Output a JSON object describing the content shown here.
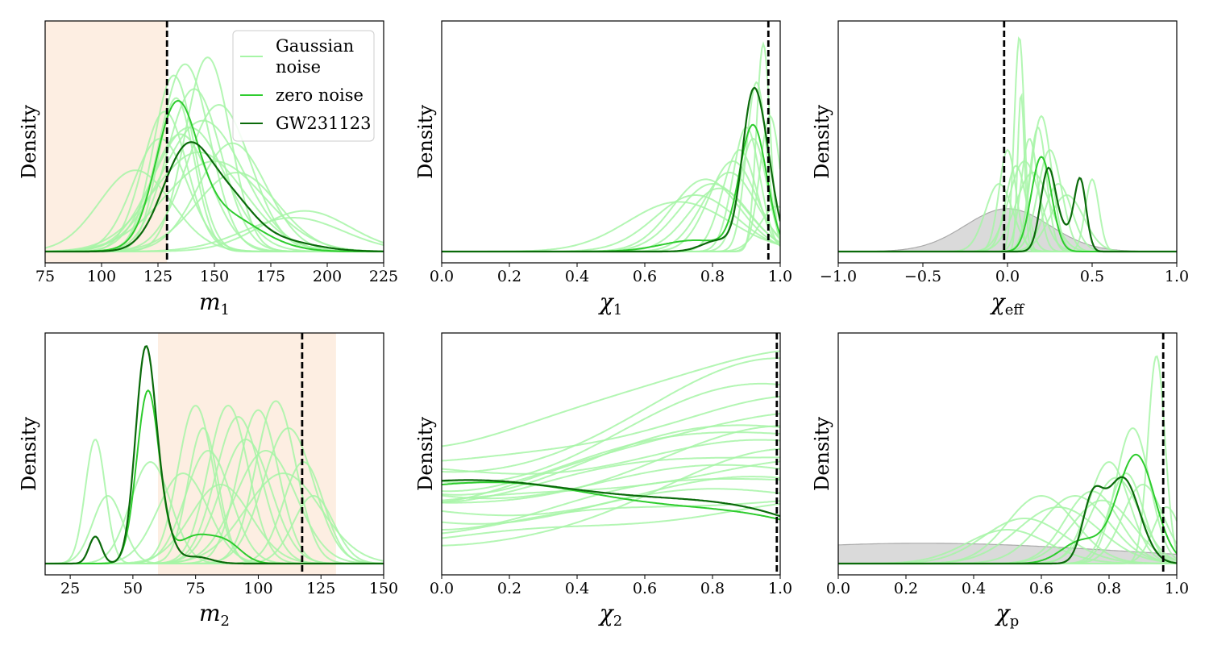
{
  "colors": {
    "gaussian_noise": "#a6f5a6",
    "zero_noise": "#2ecc2e",
    "gw231123": "#0a6a0a",
    "true_value": "#000000",
    "shade": "#fdeee2",
    "prior_fill": "#d3d3d3",
    "prior_edge": "#a9a9a9"
  },
  "legend": {
    "gaussian_line1": "Gaussian",
    "gaussian_line2": "noise",
    "zero_noise": "zero noise",
    "gw231123": "GW231123"
  },
  "chart_data": [
    {
      "type": "line",
      "panel": "m1",
      "xlabel_main": "m",
      "xlabel_sub": "1",
      "ylabel": "Density",
      "xlim": [
        75,
        225
      ],
      "ticks": [
        75,
        100,
        125,
        150,
        175,
        200,
        225
      ],
      "tick_labels": [
        "75",
        "100",
        "125",
        "150",
        "175",
        "200",
        "225"
      ],
      "true_value": 129,
      "shade_range": [
        75,
        129
      ],
      "legend_position": "top-right",
      "gaussian_peaks": [
        [
          147,
          0.86,
          10
        ],
        [
          137,
          0.83,
          11
        ],
        [
          132,
          0.78,
          9
        ],
        [
          141,
          0.72,
          12
        ],
        [
          152,
          0.65,
          14
        ],
        [
          128,
          0.62,
          10
        ],
        [
          145,
          0.58,
          18
        ],
        [
          139,
          0.55,
          16
        ],
        [
          135,
          0.52,
          13
        ],
        [
          158,
          0.48,
          15
        ],
        [
          126,
          0.5,
          12
        ],
        [
          115,
          0.36,
          16
        ],
        [
          190,
          0.18,
          20
        ],
        [
          185,
          0.15,
          22
        ],
        [
          143,
          0.44,
          20
        ],
        [
          150,
          0.4,
          22
        ],
        [
          133,
          0.68,
          8
        ],
        [
          160,
          0.35,
          18
        ]
      ],
      "zero_noise": [
        [
          133,
          0.55,
          9
        ],
        [
          150,
          0.18,
          18
        ]
      ],
      "gw231123": [
        [
          138,
          0.45,
          11
        ],
        [
          158,
          0.15,
          10
        ],
        [
          172,
          0.06,
          18
        ]
      ]
    },
    {
      "type": "line",
      "panel": "chi1",
      "xlabel_main": "χ",
      "xlabel_sub": "1",
      "ylabel": "Density",
      "xlim": [
        0,
        1
      ],
      "ticks": [
        0,
        0.2,
        0.4,
        0.6,
        0.8,
        1.0
      ],
      "tick_labels": [
        "0.0",
        "0.2",
        "0.4",
        "0.6",
        "0.8",
        "1.0"
      ],
      "true_value": 0.965,
      "gaussian_peaks": [
        [
          0.95,
          0.92,
          0.02
        ],
        [
          0.93,
          0.75,
          0.03
        ],
        [
          0.9,
          0.55,
          0.04
        ],
        [
          0.85,
          0.35,
          0.08
        ],
        [
          0.8,
          0.3,
          0.1
        ],
        [
          0.88,
          0.45,
          0.05
        ],
        [
          0.75,
          0.25,
          0.12
        ],
        [
          0.97,
          0.6,
          0.03
        ],
        [
          0.82,
          0.28,
          0.09
        ],
        [
          0.92,
          0.5,
          0.04
        ],
        [
          0.7,
          0.22,
          0.15
        ],
        [
          0.78,
          0.32,
          0.1
        ],
        [
          0.86,
          0.4,
          0.07
        ],
        [
          0.99,
          0.2,
          0.05
        ]
      ],
      "zero_noise": [
        [
          0.92,
          0.55,
          0.04
        ],
        [
          0.75,
          0.05,
          0.1
        ]
      ],
      "gw231123": [
        [
          0.915,
          0.6,
          0.03
        ],
        [
          0.96,
          0.3,
          0.03
        ],
        [
          0.82,
          0.05,
          0.05
        ]
      ]
    },
    {
      "type": "line",
      "panel": "chieff",
      "xlabel_main": "χ",
      "xlabel_sub": "eff",
      "ylabel": "Density",
      "xlim": [
        -1,
        1
      ],
      "ticks": [
        -1,
        -0.5,
        0,
        0.5,
        1
      ],
      "tick_labels": [
        "−1.0",
        "−0.5",
        "0.0",
        "0.5",
        "1.0"
      ],
      "true_value": -0.02,
      "prior_peak": [
        0.0,
        0.19,
        0.25
      ],
      "gaussian_peaks": [
        [
          0.07,
          0.95,
          0.03
        ],
        [
          0.2,
          0.6,
          0.06
        ],
        [
          0.13,
          0.5,
          0.05
        ],
        [
          0.0,
          0.45,
          0.05
        ],
        [
          0.25,
          0.45,
          0.07
        ],
        [
          0.1,
          0.4,
          0.09
        ],
        [
          0.05,
          0.38,
          0.06
        ],
        [
          0.3,
          0.3,
          0.08
        ],
        [
          0.5,
          0.32,
          0.04
        ],
        [
          0.15,
          0.35,
          0.1
        ],
        [
          -0.05,
          0.3,
          0.08
        ],
        [
          0.35,
          0.25,
          0.1
        ],
        [
          0.18,
          0.55,
          0.05
        ],
        [
          0.08,
          0.7,
          0.02
        ]
      ],
      "zero_noise": [
        [
          0.2,
          0.42,
          0.06
        ]
      ],
      "gw231123": [
        [
          0.24,
          0.36,
          0.045
        ],
        [
          0.43,
          0.31,
          0.035
        ],
        [
          0.34,
          0.08,
          0.05
        ]
      ]
    },
    {
      "type": "line",
      "panel": "m2",
      "xlabel_main": "m",
      "xlabel_sub": "2",
      "ylabel": "Density",
      "xlim": [
        15,
        150
      ],
      "ticks": [
        25,
        50,
        75,
        100,
        125,
        150
      ],
      "tick_labels": [
        "25",
        "50",
        "75",
        "100",
        "125",
        "150"
      ],
      "true_value": 117.5,
      "shade_range": [
        60,
        131
      ],
      "gaussian_peaks": [
        [
          35,
          0.55,
          4
        ],
        [
          40,
          0.3,
          6
        ],
        [
          57,
          0.45,
          8
        ],
        [
          75,
          0.7,
          7
        ],
        [
          80,
          0.5,
          9
        ],
        [
          88,
          0.7,
          8
        ],
        [
          95,
          0.55,
          10
        ],
        [
          100,
          0.68,
          8
        ],
        [
          107,
          0.72,
          8
        ],
        [
          112,
          0.6,
          10
        ],
        [
          118,
          0.45,
          8
        ],
        [
          85,
          0.35,
          12
        ],
        [
          70,
          0.4,
          10
        ],
        [
          92,
          0.65,
          9
        ],
        [
          103,
          0.5,
          12
        ],
        [
          122,
          0.3,
          8
        ],
        [
          78,
          0.6,
          6
        ],
        [
          110,
          0.4,
          15
        ]
      ],
      "zero_noise": [
        [
          56,
          0.76,
          4.5
        ],
        [
          75,
          0.12,
          8
        ],
        [
          88,
          0.07,
          6
        ]
      ],
      "gw231123": [
        [
          55,
          0.93,
          4
        ],
        [
          35,
          0.12,
          2.5
        ],
        [
          62,
          0.15,
          4
        ],
        [
          75,
          0.03,
          6
        ]
      ]
    },
    {
      "type": "line",
      "panel": "chi2",
      "xlabel_main": "χ",
      "xlabel_sub": "2",
      "ylabel": "Density",
      "xlim": [
        0,
        1
      ],
      "ticks": [
        0,
        0.2,
        0.4,
        0.6,
        0.8,
        1.0
      ],
      "tick_labels": [
        "0.0",
        "0.2",
        "0.4",
        "0.6",
        "0.8",
        "1.0"
      ],
      "true_value": 0.99,
      "gaussian_start_end": [
        [
          0.52,
          0.95
        ],
        [
          0.43,
          0.72
        ],
        [
          0.38,
          0.88
        ],
        [
          0.36,
          0.78
        ],
        [
          0.33,
          0.62
        ],
        [
          0.3,
          0.5
        ],
        [
          0.28,
          0.68
        ],
        [
          0.26,
          0.44
        ],
        [
          0.24,
          0.58
        ],
        [
          0.22,
          0.36
        ],
        [
          0.2,
          0.32
        ],
        [
          0.18,
          0.4
        ],
        [
          0.15,
          0.3
        ],
        [
          0.1,
          0.26
        ],
        [
          0.05,
          0.48
        ],
        [
          0.4,
          0.52
        ],
        [
          0.31,
          0.42
        ],
        [
          0.35,
          0.6
        ]
      ],
      "zero_noise_start_end": [
        0.35,
        0.18
      ],
      "gw231123_start_end": [
        0.35,
        0.19
      ]
    },
    {
      "type": "line",
      "panel": "chip",
      "xlabel_main": "χ",
      "xlabel_sub": "p",
      "ylabel": "Density",
      "xlim": [
        0,
        1
      ],
      "ticks": [
        0,
        0.2,
        0.4,
        0.6,
        0.8,
        1.0
      ],
      "tick_labels": [
        "0.0",
        "0.2",
        "0.4",
        "0.6",
        "0.8",
        "1.0"
      ],
      "true_value": 0.96,
      "prior_peak": [
        0.25,
        0.09,
        0.6
      ],
      "gaussian_peaks": [
        [
          0.94,
          0.92,
          0.025
        ],
        [
          0.87,
          0.6,
          0.05
        ],
        [
          0.8,
          0.45,
          0.06
        ],
        [
          0.75,
          0.32,
          0.08
        ],
        [
          0.7,
          0.3,
          0.1
        ],
        [
          0.6,
          0.3,
          0.1
        ],
        [
          0.55,
          0.2,
          0.12
        ],
        [
          0.9,
          0.35,
          0.06
        ],
        [
          0.82,
          0.38,
          0.07
        ],
        [
          0.65,
          0.25,
          0.12
        ],
        [
          0.5,
          0.15,
          0.12
        ],
        [
          0.78,
          0.28,
          0.09
        ],
        [
          0.97,
          0.25,
          0.04
        ],
        [
          0.85,
          0.4,
          0.05
        ]
      ],
      "zero_noise": [
        [
          0.88,
          0.48,
          0.055
        ],
        [
          0.72,
          0.1,
          0.06
        ]
      ],
      "gw231123": [
        [
          0.84,
          0.38,
          0.05
        ],
        [
          0.75,
          0.25,
          0.03
        ]
      ]
    }
  ]
}
